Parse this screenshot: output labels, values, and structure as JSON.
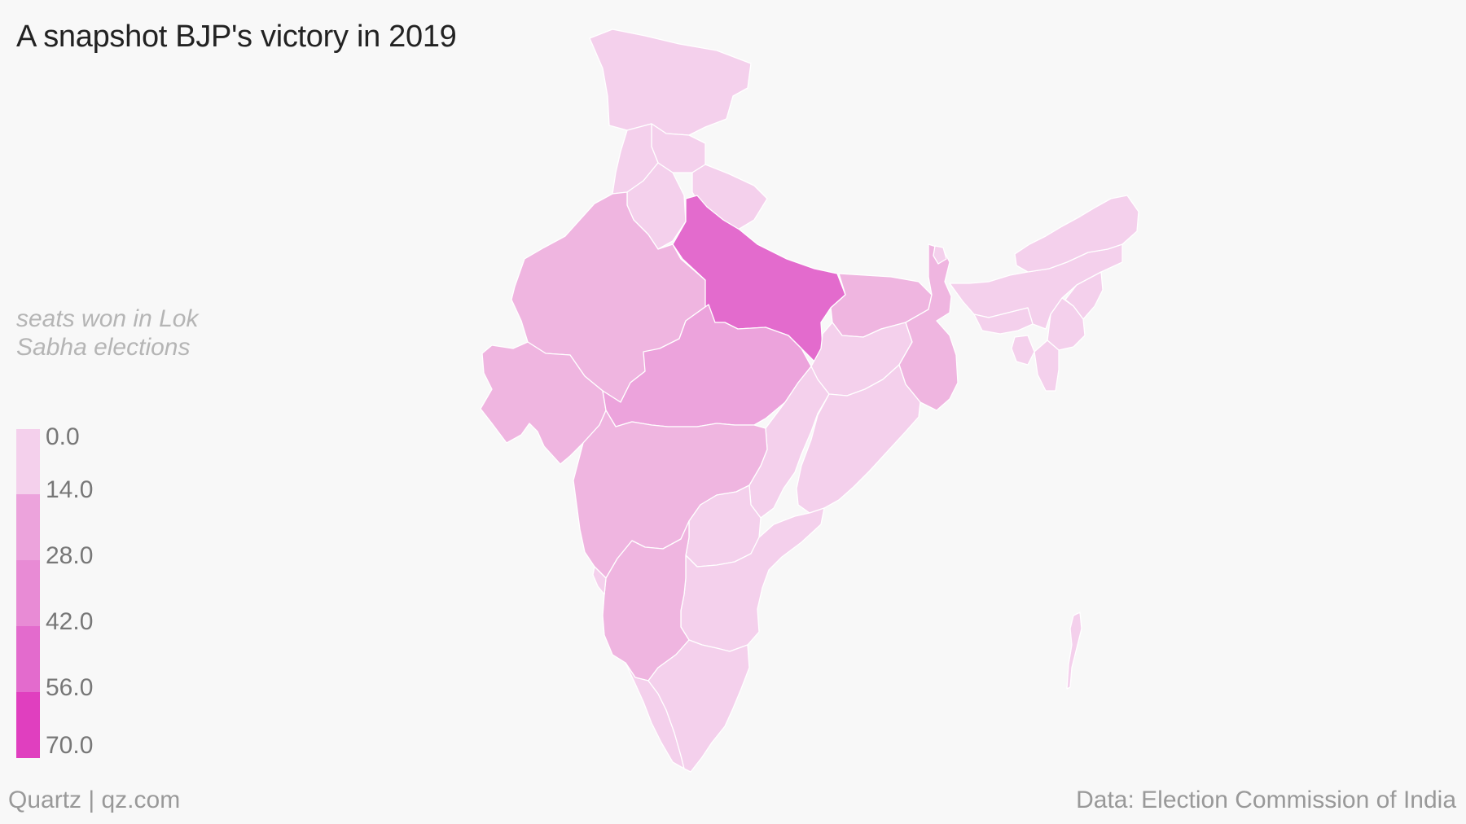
{
  "title": "A snapshot BJP's victory in 2019",
  "legend": {
    "title": "seats won in Lok Sabha elections",
    "ticks": [
      "0.0",
      "14.0",
      "28.0",
      "42.0",
      "56.0",
      "70.0"
    ],
    "colors": [
      "#f4d0ec",
      "#efb5e0",
      "#eca3dc",
      "#e88bd5",
      "#e36bcd",
      "#e03fbf"
    ]
  },
  "source": "Data: Election Commission of India",
  "credit": "Quartz | qz.com",
  "map_data": {
    "type": "choropleth",
    "metric": "BJP seats won in Lok Sabha elections 2019",
    "scale": [
      0,
      70
    ],
    "regions": [
      {
        "id": "jammu-kashmir",
        "seats": 3
      },
      {
        "id": "himachal-pradesh",
        "seats": 4
      },
      {
        "id": "punjab",
        "seats": 2
      },
      {
        "id": "uttarakhand",
        "seats": 5
      },
      {
        "id": "haryana",
        "seats": 10
      },
      {
        "id": "rajasthan",
        "seats": 24
      },
      {
        "id": "uttar-pradesh",
        "seats": 62
      },
      {
        "id": "gujarat",
        "seats": 26
      },
      {
        "id": "madhya-pradesh",
        "seats": 28
      },
      {
        "id": "bihar",
        "seats": 17
      },
      {
        "id": "jharkhand",
        "seats": 11
      },
      {
        "id": "west-bengal",
        "seats": 18
      },
      {
        "id": "chhattisgarh",
        "seats": 9
      },
      {
        "id": "odisha",
        "seats": 8
      },
      {
        "id": "maharashtra",
        "seats": 23
      },
      {
        "id": "telangana",
        "seats": 4
      },
      {
        "id": "andhra-pradesh",
        "seats": 0
      },
      {
        "id": "karnataka",
        "seats": 25
      },
      {
        "id": "goa",
        "seats": 1
      },
      {
        "id": "kerala",
        "seats": 0
      },
      {
        "id": "tamil-nadu",
        "seats": 0
      },
      {
        "id": "sikkim",
        "seats": 0
      },
      {
        "id": "assam",
        "seats": 9
      },
      {
        "id": "arunachal-pradesh",
        "seats": 2
      },
      {
        "id": "meghalaya",
        "seats": 0
      },
      {
        "id": "nagaland",
        "seats": 0
      },
      {
        "id": "manipur",
        "seats": 1
      },
      {
        "id": "mizoram",
        "seats": 0
      },
      {
        "id": "tripura",
        "seats": 2
      },
      {
        "id": "andaman-nicobar",
        "seats": 1
      }
    ]
  }
}
